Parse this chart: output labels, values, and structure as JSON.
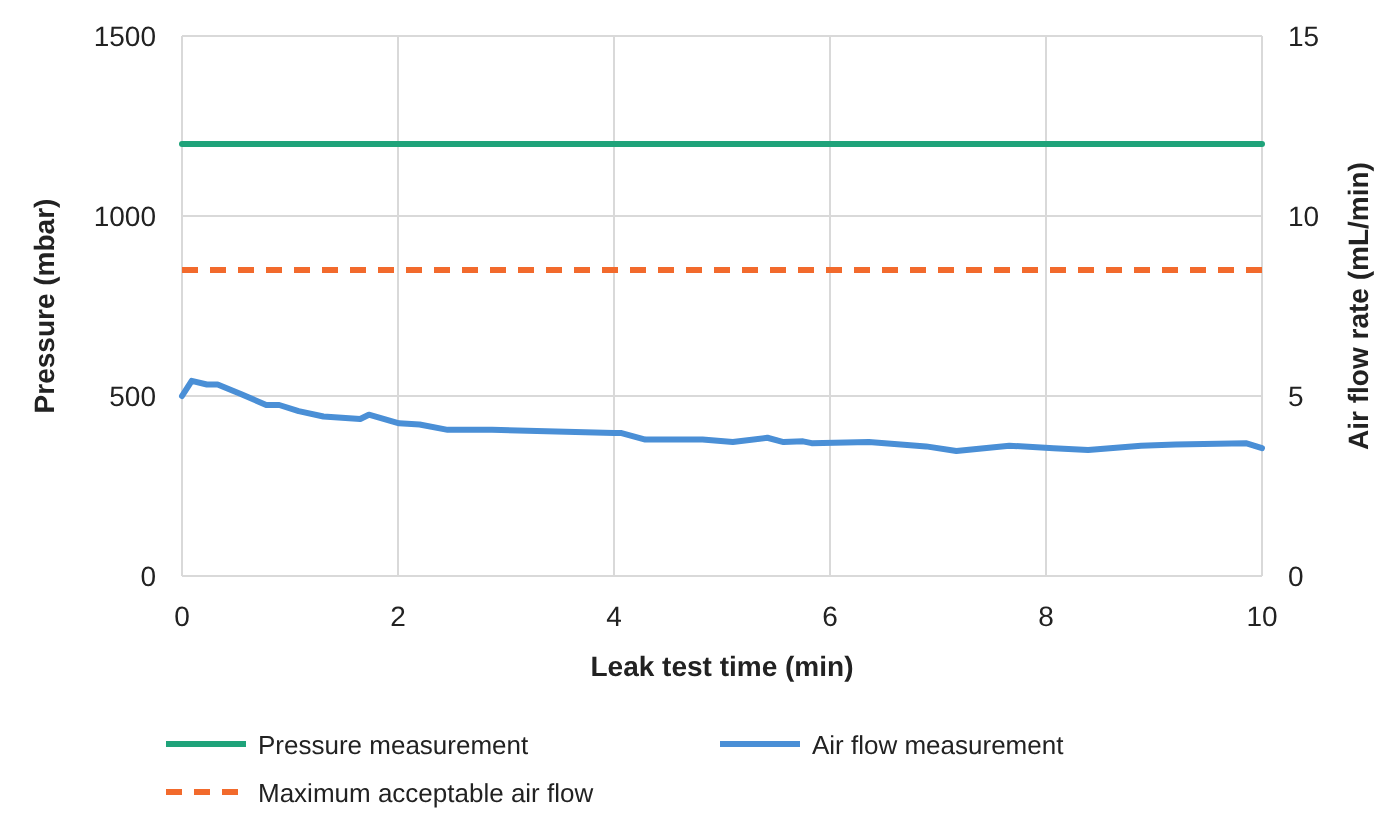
{
  "chart_data": {
    "type": "line",
    "xlabel": "Leak test time (min)",
    "ylabel": "Pressure (mbar)",
    "y2label": "Air flow rate (mL/min)",
    "xlim": [
      0,
      10
    ],
    "xticks": [
      0,
      2,
      4,
      6,
      8,
      10
    ],
    "ylim": [
      0,
      1500
    ],
    "yticks": [
      0,
      500,
      1000,
      1500
    ],
    "y2lim": [
      0,
      15
    ],
    "y2ticks": [
      0,
      5,
      10,
      15
    ],
    "grid": true,
    "legend": "bottom",
    "line_style": "solid",
    "marker": "none",
    "series": [
      {
        "name": "Pressure measurement",
        "color": "#1fa37a",
        "x": [
          0,
          10
        ],
        "values": [
          1200,
          1200
        ]
      },
      {
        "name": "Air flow measurement",
        "color": "#4a8fd6",
        "axis": "y2",
        "x": [
          0,
          0.09,
          0.23,
          0.33,
          0.55,
          0.78,
          0.9,
          1.08,
          1.31,
          1.65,
          1.73,
          2.01,
          2.2,
          2.46,
          2.87,
          4.0,
          4.07,
          4.29,
          4.82,
          5.1,
          5.42,
          5.57,
          5.75,
          5.83,
          6.36,
          6.89,
          7.17,
          7.66,
          8.07,
          8.39,
          8.88,
          9.2,
          9.85,
          10
        ],
        "values": [
          5.0,
          5.42,
          5.32,
          5.32,
          5.05,
          4.75,
          4.75,
          4.58,
          4.43,
          4.36,
          4.48,
          4.24,
          4.21,
          4.06,
          4.06,
          3.97,
          3.97,
          3.79,
          3.79,
          3.72,
          3.84,
          3.72,
          3.74,
          3.69,
          3.72,
          3.6,
          3.47,
          3.62,
          3.55,
          3.5,
          3.62,
          3.65,
          3.69,
          3.55
        ]
      }
    ],
    "ref_lines": [
      {
        "axis": "y2",
        "value": 8.5,
        "label": "Maximum acceptable air flow",
        "color": "#f26a2c",
        "line_style": "dashed"
      }
    ]
  }
}
